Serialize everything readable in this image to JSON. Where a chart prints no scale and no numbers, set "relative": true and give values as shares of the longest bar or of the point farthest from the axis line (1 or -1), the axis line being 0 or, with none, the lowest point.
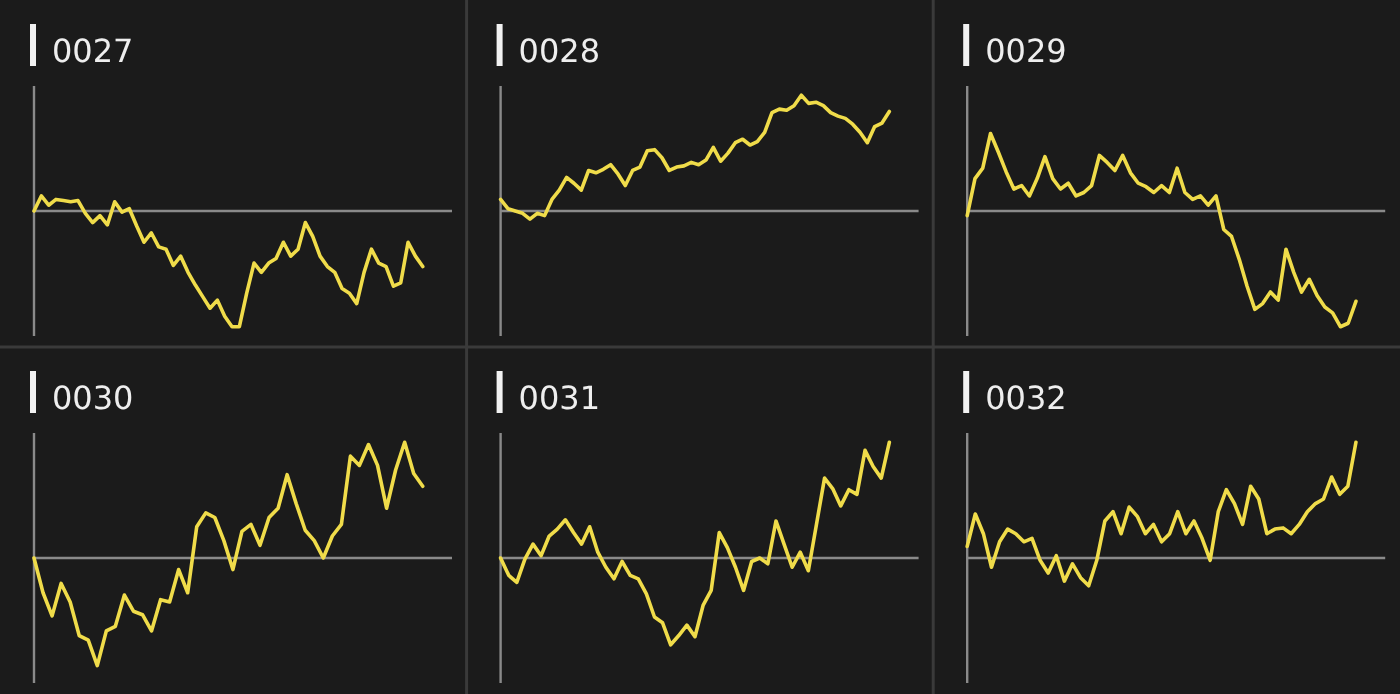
{
  "chart_data": [
    {
      "type": "line",
      "title": "0027",
      "relative": true,
      "categories": [
        null,
        null,
        null,
        null,
        null,
        null,
        null,
        null,
        null,
        null,
        null,
        null,
        null,
        null,
        null,
        null,
        null,
        null,
        null,
        null,
        null,
        null,
        null,
        null,
        null,
        null,
        null,
        null,
        null,
        null,
        null,
        null,
        null,
        null,
        null,
        null,
        null,
        null,
        null,
        null,
        null,
        null,
        null,
        null,
        null,
        null,
        null,
        null,
        null,
        null,
        null,
        null,
        null,
        null
      ],
      "series": [
        {
          "color": "#f0dc4a",
          "values": [
            0,
            0.13,
            0.05,
            0.1,
            0.09,
            0.08,
            0.09,
            -0.02,
            -0.1,
            -0.04,
            -0.12,
            0.08,
            -0.01,
            0.02,
            -0.13,
            -0.27,
            -0.19,
            -0.31,
            -0.33,
            -0.47,
            -0.39,
            -0.53,
            -0.64,
            -0.74,
            -0.84,
            -0.77,
            -0.91,
            -1,
            -1,
            -0.71,
            -0.45,
            -0.53,
            -0.45,
            -0.41,
            -0.27,
            -0.39,
            -0.33,
            -0.1,
            -0.22,
            -0.39,
            -0.48,
            -0.53,
            -0.67,
            -0.71,
            -0.8,
            -0.53,
            -0.33,
            -0.45,
            -0.48,
            -0.65,
            -0.62,
            -0.27,
            -0.39,
            -0.48
          ]
        }
      ]
    },
    {
      "type": "line",
      "title": "0028",
      "relative": true,
      "categories": [
        null,
        null,
        null,
        null,
        null,
        null,
        null,
        null,
        null,
        null,
        null,
        null,
        null,
        null,
        null,
        null,
        null,
        null,
        null,
        null,
        null,
        null,
        null,
        null,
        null,
        null,
        null,
        null,
        null,
        null,
        null,
        null,
        null,
        null,
        null,
        null,
        null,
        null,
        null,
        null,
        null,
        null,
        null,
        null,
        null,
        null,
        null,
        null,
        null,
        null,
        null,
        null,
        null,
        null
      ],
      "series": [
        {
          "color": "#f0dc4a",
          "values": [
            0.1,
            0.02,
            0,
            -0.02,
            -0.07,
            -0.02,
            -0.04,
            0.1,
            0.18,
            0.29,
            0.24,
            0.18,
            0.35,
            0.33,
            0.36,
            0.4,
            0.32,
            0.22,
            0.35,
            0.38,
            0.52,
            0.53,
            0.46,
            0.35,
            0.38,
            0.39,
            0.42,
            0.4,
            0.44,
            0.55,
            0.43,
            0.5,
            0.59,
            0.62,
            0.57,
            0.6,
            0.68,
            0.85,
            0.88,
            0.87,
            0.91,
            1,
            0.93,
            0.94,
            0.91,
            0.85,
            0.82,
            0.8,
            0.75,
            0.68,
            0.59,
            0.73,
            0.76,
            0.86
          ]
        }
      ]
    },
    {
      "type": "line",
      "title": "0029",
      "relative": true,
      "categories": [
        null,
        null,
        null,
        null,
        null,
        null,
        null,
        null,
        null,
        null,
        null,
        null,
        null,
        null,
        null,
        null,
        null,
        null,
        null,
        null,
        null,
        null,
        null,
        null,
        null,
        null,
        null,
        null,
        null,
        null,
        null,
        null,
        null,
        null,
        null,
        null,
        null,
        null,
        null,
        null,
        null,
        null,
        null,
        null,
        null,
        null,
        null,
        null,
        null,
        null,
        null
      ],
      "series": [
        {
          "color": "#f0dc4a",
          "values": [
            -0.04,
            0.28,
            0.37,
            0.67,
            0.51,
            0.34,
            0.19,
            0.22,
            0.13,
            0.28,
            0.47,
            0.28,
            0.19,
            0.24,
            0.13,
            0.16,
            0.22,
            0.48,
            0.42,
            0.35,
            0.48,
            0.33,
            0.24,
            0.21,
            0.16,
            0.22,
            0.16,
            0.37,
            0.16,
            0.1,
            0.13,
            0.05,
            0.13,
            -0.16,
            -0.22,
            -0.42,
            -0.65,
            -0.85,
            -0.8,
            -0.7,
            -0.77,
            -0.33,
            -0.53,
            -0.7,
            -0.59,
            -0.73,
            -0.83,
            -0.88,
            -1,
            -0.97,
            -0.78
          ]
        }
      ]
    },
    {
      "type": "line",
      "title": "0030",
      "relative": true,
      "categories": [
        null,
        null,
        null,
        null,
        null,
        null,
        null,
        null,
        null,
        null,
        null,
        null,
        null,
        null,
        null,
        null,
        null,
        null,
        null,
        null,
        null,
        null,
        null,
        null,
        null,
        null,
        null,
        null,
        null,
        null,
        null,
        null,
        null,
        null,
        null,
        null,
        null,
        null,
        null,
        null,
        null,
        null,
        null,
        null
      ],
      "series": [
        {
          "color": "#f0dc4a",
          "values": [
            0,
            -0.3,
            -0.5,
            -0.22,
            -0.38,
            -0.67,
            -0.71,
            -0.93,
            -0.63,
            -0.59,
            -0.32,
            -0.46,
            -0.49,
            -0.63,
            -0.36,
            -0.38,
            -0.1,
            -0.3,
            0.27,
            0.39,
            0.35,
            0.15,
            -0.1,
            0.23,
            0.29,
            0.11,
            0.35,
            0.43,
            0.72,
            0.47,
            0.24,
            0.15,
            0,
            0.19,
            0.29,
            0.88,
            0.8,
            0.98,
            0.8,
            0.43,
            0.76,
            1,
            0.73,
            0.62
          ]
        }
      ]
    },
    {
      "type": "line",
      "title": "0031",
      "relative": true,
      "categories": [
        null,
        null,
        null,
        null,
        null,
        null,
        null,
        null,
        null,
        null,
        null,
        null,
        null,
        null,
        null,
        null,
        null,
        null,
        null,
        null,
        null,
        null,
        null,
        null,
        null,
        null,
        null,
        null,
        null,
        null,
        null,
        null,
        null,
        null,
        null,
        null,
        null,
        null,
        null,
        null,
        null,
        null,
        null,
        null,
        null,
        null,
        null,
        null,
        null
      ],
      "series": [
        {
          "color": "#f0dc4a",
          "values": [
            0,
            -0.15,
            -0.21,
            -0.01,
            0.12,
            0.02,
            0.19,
            0.25,
            0.33,
            0.22,
            0.12,
            0.27,
            0.05,
            -0.08,
            -0.18,
            -0.03,
            -0.15,
            -0.18,
            -0.31,
            -0.51,
            -0.56,
            -0.75,
            -0.67,
            -0.58,
            -0.68,
            -0.41,
            -0.28,
            0.22,
            0.09,
            -0.08,
            -0.28,
            -0.03,
            0,
            -0.05,
            0.32,
            0.12,
            -0.08,
            0.05,
            -0.11,
            0.29,
            0.69,
            0.6,
            0.45,
            0.59,
            0.55,
            0.93,
            0.79,
            0.69,
            1
          ]
        }
      ]
    },
    {
      "type": "line",
      "title": "0032",
      "relative": true,
      "categories": [
        null,
        null,
        null,
        null,
        null,
        null,
        null,
        null,
        null,
        null,
        null,
        null,
        null,
        null,
        null,
        null,
        null,
        null,
        null,
        null,
        null,
        null,
        null,
        null,
        null,
        null,
        null,
        null,
        null,
        null,
        null,
        null,
        null,
        null,
        null,
        null,
        null,
        null,
        null,
        null,
        null,
        null,
        null,
        null,
        null,
        null,
        null,
        null,
        null
      ],
      "series": [
        {
          "color": "#f0dc4a",
          "values": [
            0.1,
            0.38,
            0.21,
            -0.08,
            0.14,
            0.25,
            0.21,
            0.14,
            0.17,
            -0.02,
            -0.13,
            0.02,
            -0.2,
            -0.05,
            -0.17,
            -0.24,
            -0.02,
            0.32,
            0.4,
            0.21,
            0.44,
            0.36,
            0.21,
            0.29,
            0.14,
            0.21,
            0.4,
            0.21,
            0.32,
            0.17,
            -0.02,
            0.4,
            0.59,
            0.47,
            0.29,
            0.62,
            0.51,
            0.21,
            0.25,
            0.26,
            0.21,
            0.29,
            0.4,
            0.47,
            0.51,
            0.7,
            0.55,
            0.62,
            1
          ]
        }
      ]
    }
  ]
}
